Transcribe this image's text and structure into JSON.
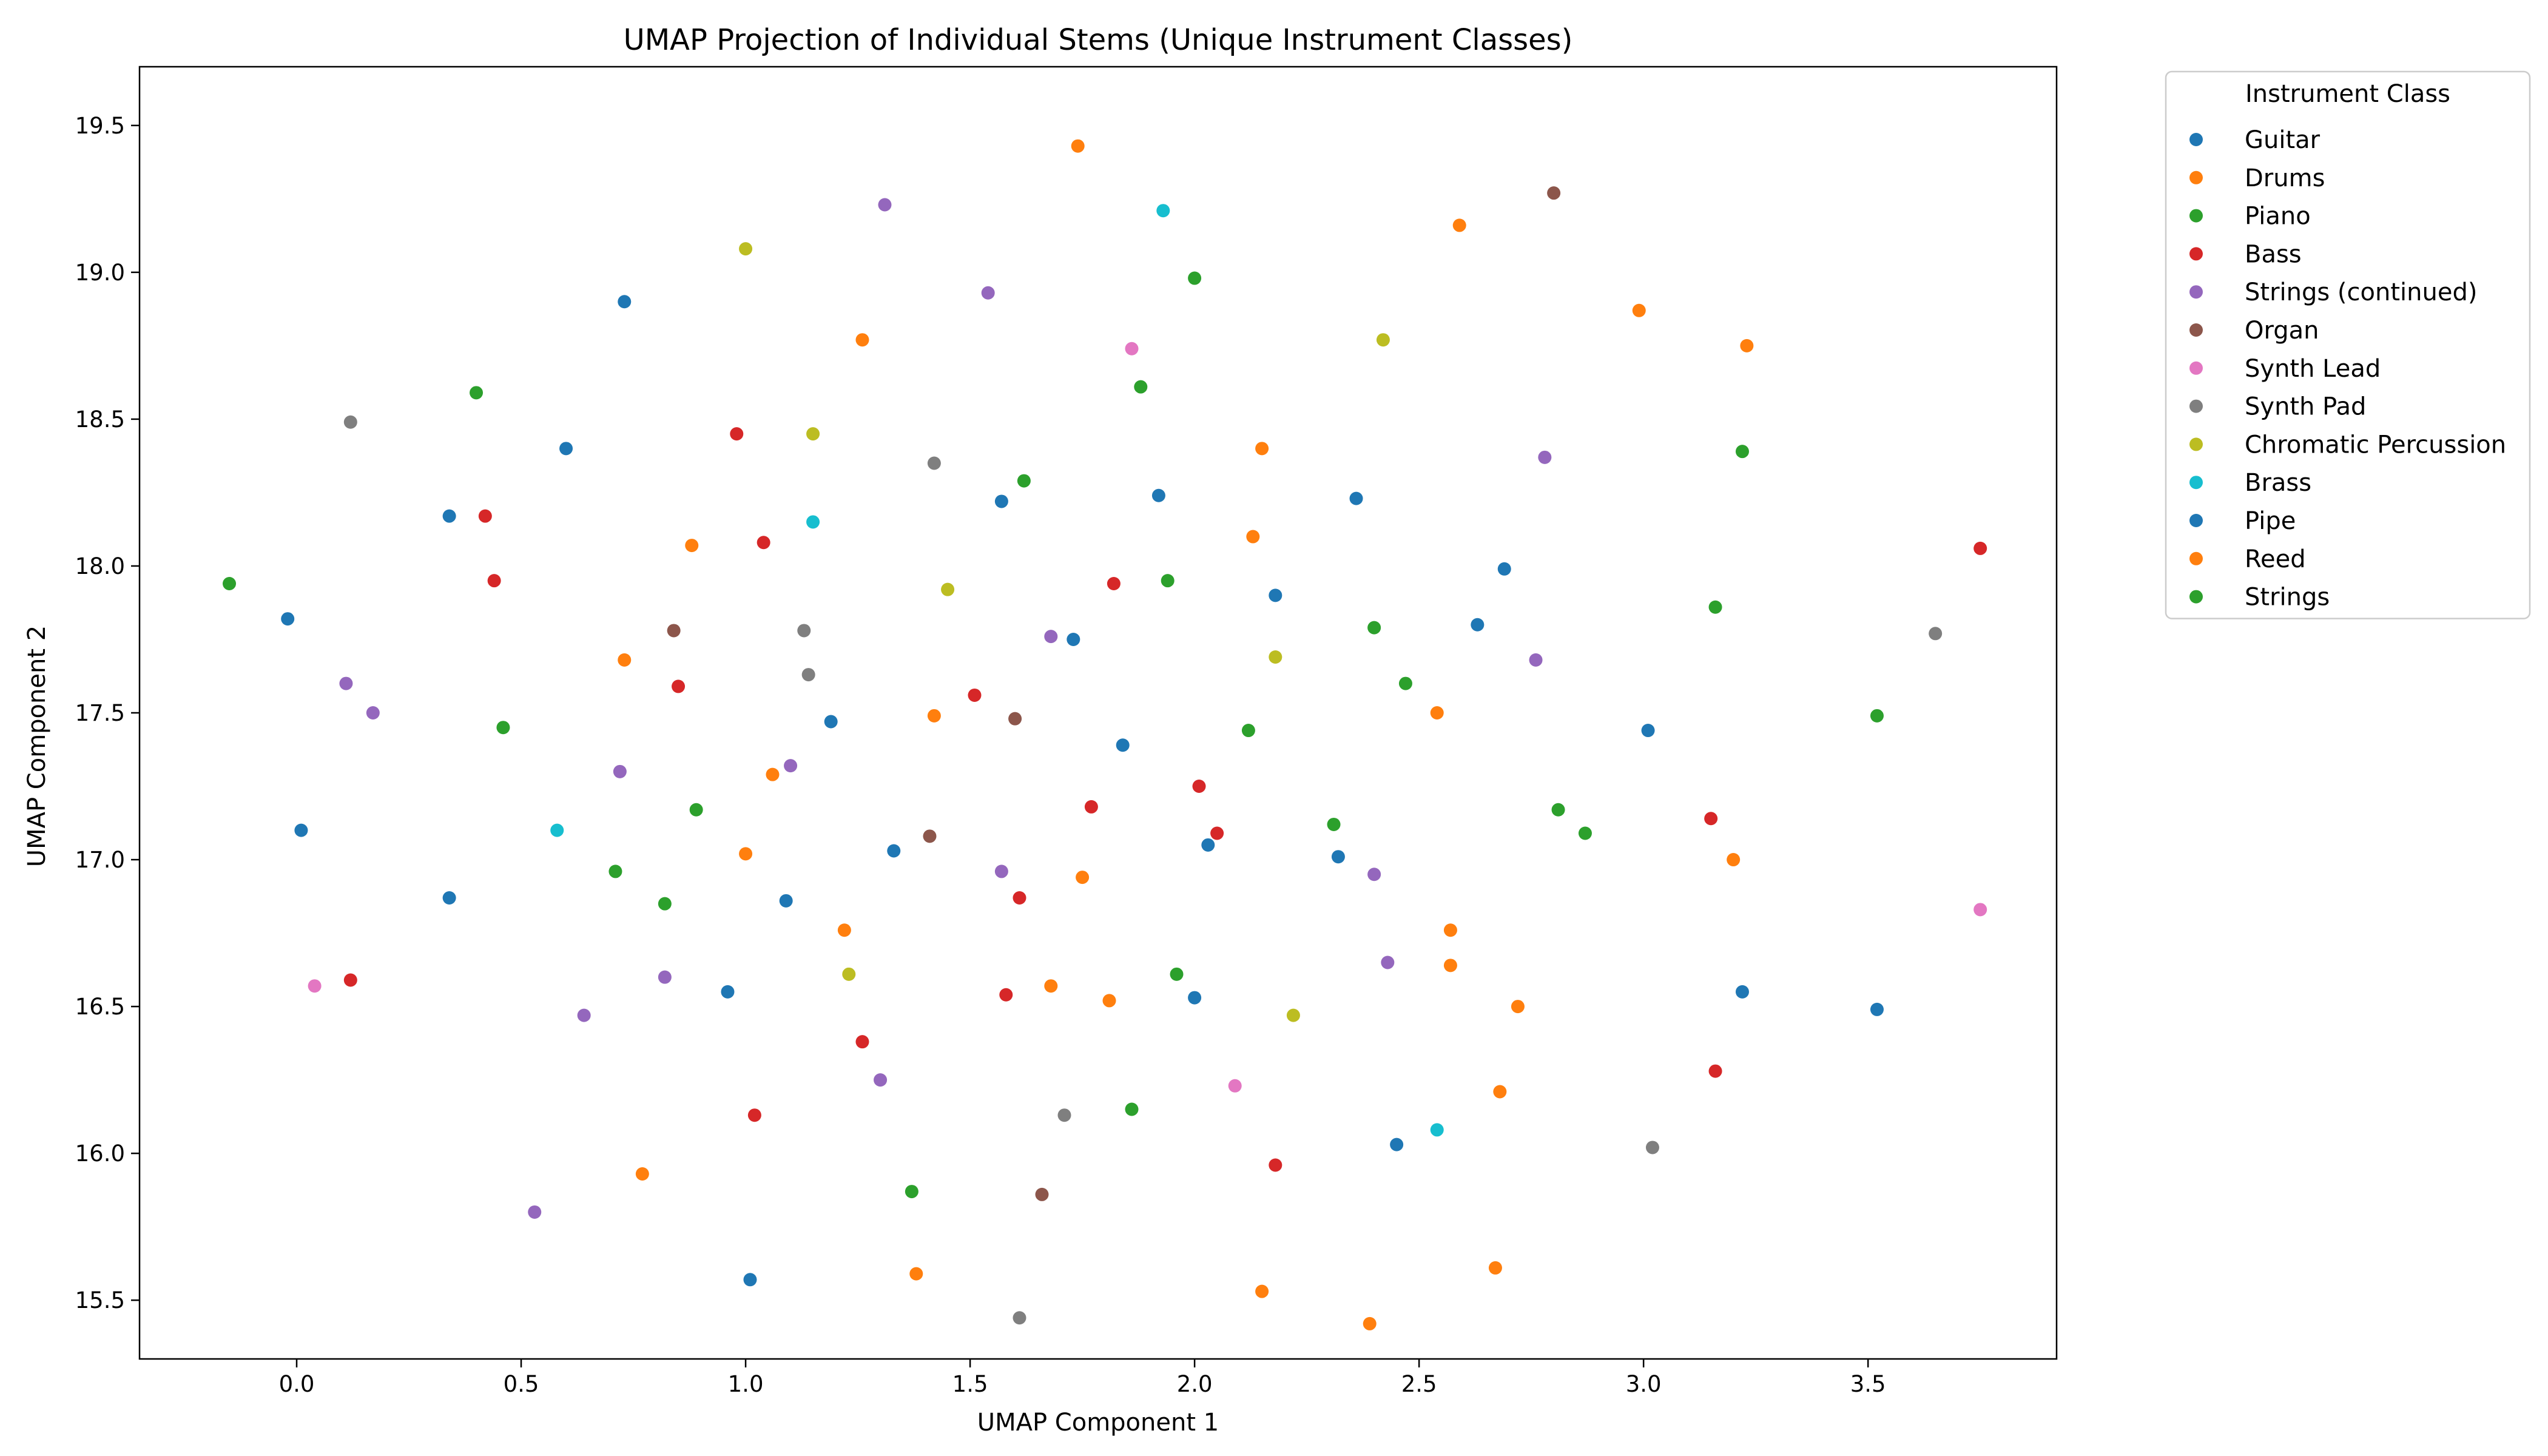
{
  "chart_data": {
    "type": "scatter",
    "title": "UMAP Projection of Individual Stems (Unique Instrument Classes)",
    "xlabel": "UMAP Component 1",
    "ylabel": "UMAP Component 2",
    "xlim": [
      -0.35,
      3.92
    ],
    "ylim": [
      15.3,
      19.7
    ],
    "xticks": [
      "0.0",
      "0.5",
      "1.0",
      "1.5",
      "2.0",
      "2.5",
      "3.0",
      "3.5"
    ],
    "yticks": [
      "15.5",
      "16.0",
      "16.5",
      "17.0",
      "17.5",
      "18.0",
      "18.5",
      "19.0",
      "19.5"
    ],
    "grid": false,
    "legend": {
      "title": "Instrument Class",
      "position": "outside-top-right"
    },
    "series": [
      {
        "name": "Guitar",
        "color": "#1f77b4",
        "points": [
          [
            0.73,
            18.9
          ],
          [
            0.6,
            18.4
          ],
          [
            0.34,
            18.17
          ],
          [
            -0.02,
            17.82
          ],
          [
            0.01,
            17.1
          ],
          [
            0.34,
            16.87
          ],
          [
            1.57,
            18.22
          ],
          [
            1.92,
            18.24
          ],
          [
            1.73,
            17.75
          ],
          [
            1.19,
            17.47
          ],
          [
            1.33,
            17.03
          ],
          [
            1.09,
            16.86
          ],
          [
            0.96,
            16.55
          ],
          [
            1.84,
            17.39
          ],
          [
            2.18,
            17.9
          ],
          [
            2.36,
            18.23
          ],
          [
            2.03,
            17.05
          ],
          [
            2.0,
            16.53
          ],
          [
            2.32,
            17.01
          ],
          [
            2.63,
            17.8
          ],
          [
            2.69,
            17.99
          ],
          [
            3.01,
            17.44
          ],
          [
            3.22,
            16.55
          ],
          [
            3.52,
            16.49
          ],
          [
            2.45,
            16.03
          ],
          [
            1.01,
            15.57
          ]
        ]
      },
      {
        "name": "Drums",
        "color": "#ff7f0e",
        "points": [
          [
            1.74,
            19.43
          ],
          [
            1.26,
            18.77
          ],
          [
            0.88,
            18.07
          ],
          [
            0.73,
            17.68
          ],
          [
            1.06,
            17.29
          ],
          [
            1.0,
            17.02
          ],
          [
            1.42,
            17.49
          ],
          [
            1.22,
            16.76
          ],
          [
            1.75,
            16.94
          ],
          [
            1.68,
            16.57
          ],
          [
            1.81,
            16.52
          ],
          [
            2.15,
            18.4
          ],
          [
            2.13,
            18.1
          ],
          [
            2.59,
            19.16
          ],
          [
            2.99,
            18.87
          ],
          [
            3.23,
            18.75
          ],
          [
            2.54,
            17.5
          ],
          [
            2.57,
            16.76
          ],
          [
            2.57,
            16.64
          ],
          [
            2.72,
            16.5
          ],
          [
            3.2,
            17.0
          ],
          [
            2.68,
            16.21
          ],
          [
            0.77,
            15.93
          ],
          [
            1.38,
            15.59
          ],
          [
            2.15,
            15.53
          ],
          [
            2.39,
            15.42
          ],
          [
            2.67,
            15.61
          ]
        ]
      },
      {
        "name": "Piano",
        "color": "#2ca02c",
        "points": [
          [
            -0.15,
            17.94
          ],
          [
            0.4,
            18.59
          ],
          [
            0.46,
            17.45
          ],
          [
            0.89,
            17.17
          ],
          [
            0.71,
            16.96
          ],
          [
            0.82,
            16.85
          ],
          [
            1.62,
            18.29
          ],
          [
            1.88,
            18.61
          ],
          [
            2.0,
            18.98
          ],
          [
            1.94,
            17.95
          ],
          [
            2.4,
            17.79
          ],
          [
            2.47,
            17.6
          ],
          [
            2.12,
            17.44
          ],
          [
            2.31,
            17.12
          ],
          [
            2.81,
            17.17
          ],
          [
            2.87,
            17.09
          ],
          [
            3.16,
            17.86
          ],
          [
            3.22,
            18.39
          ],
          [
            3.52,
            17.49
          ],
          [
            1.96,
            16.61
          ],
          [
            1.86,
            16.15
          ],
          [
            1.37,
            15.87
          ]
        ]
      },
      {
        "name": "Bass",
        "color": "#d62728",
        "points": [
          [
            0.42,
            18.17
          ],
          [
            0.44,
            17.95
          ],
          [
            0.98,
            18.45
          ],
          [
            1.04,
            18.08
          ],
          [
            0.85,
            17.59
          ],
          [
            1.82,
            17.94
          ],
          [
            1.51,
            17.56
          ],
          [
            1.77,
            17.18
          ],
          [
            2.01,
            17.25
          ],
          [
            2.05,
            17.09
          ],
          [
            1.61,
            16.87
          ],
          [
            1.58,
            16.54
          ],
          [
            1.26,
            16.38
          ],
          [
            1.02,
            16.13
          ],
          [
            0.12,
            16.59
          ],
          [
            2.18,
            15.96
          ],
          [
            3.15,
            17.14
          ],
          [
            3.16,
            16.28
          ],
          [
            3.75,
            18.06
          ]
        ]
      },
      {
        "name": "Strings (continued)",
        "color": "#9467bd",
        "points": [
          [
            1.31,
            19.23
          ],
          [
            1.54,
            18.93
          ],
          [
            0.11,
            17.6
          ],
          [
            0.17,
            17.5
          ],
          [
            0.72,
            17.3
          ],
          [
            1.1,
            17.32
          ],
          [
            1.68,
            17.76
          ],
          [
            1.57,
            16.96
          ],
          [
            0.82,
            16.6
          ],
          [
            0.64,
            16.47
          ],
          [
            1.3,
            16.25
          ],
          [
            0.53,
            15.8
          ],
          [
            2.4,
            16.95
          ],
          [
            2.43,
            16.65
          ],
          [
            2.76,
            17.68
          ],
          [
            2.78,
            18.37
          ]
        ]
      },
      {
        "name": "Organ",
        "color": "#8c564b",
        "points": [
          [
            2.8,
            19.27
          ],
          [
            0.84,
            17.78
          ],
          [
            1.6,
            17.48
          ],
          [
            1.41,
            17.08
          ],
          [
            1.66,
            15.86
          ]
        ]
      },
      {
        "name": "Synth Lead",
        "color": "#e377c2",
        "points": [
          [
            1.86,
            18.74
          ],
          [
            0.04,
            16.57
          ],
          [
            2.09,
            16.23
          ],
          [
            3.75,
            16.83
          ]
        ]
      },
      {
        "name": "Synth Pad",
        "color": "#7f7f7f",
        "points": [
          [
            0.12,
            18.49
          ],
          [
            1.42,
            18.35
          ],
          [
            1.13,
            17.78
          ],
          [
            1.14,
            17.63
          ],
          [
            1.71,
            16.13
          ],
          [
            3.02,
            16.02
          ],
          [
            3.65,
            17.77
          ],
          [
            1.61,
            15.44
          ]
        ]
      },
      {
        "name": "Chromatic Percussion",
        "color": "#bcbd22",
        "points": [
          [
            1.0,
            19.08
          ],
          [
            1.15,
            18.45
          ],
          [
            1.45,
            17.92
          ],
          [
            2.18,
            17.69
          ],
          [
            2.42,
            18.77
          ],
          [
            1.23,
            16.61
          ],
          [
            2.22,
            16.47
          ]
        ]
      },
      {
        "name": "Brass",
        "color": "#17becf",
        "points": [
          [
            1.93,
            19.21
          ],
          [
            1.15,
            18.15
          ],
          [
            0.58,
            17.1
          ],
          [
            2.54,
            16.08
          ]
        ]
      },
      {
        "name": "Pipe",
        "color": "#1f77b4",
        "points": []
      },
      {
        "name": "Reed",
        "color": "#ff7f0e",
        "points": []
      },
      {
        "name": "Strings",
        "color": "#2ca02c",
        "points": []
      }
    ]
  }
}
